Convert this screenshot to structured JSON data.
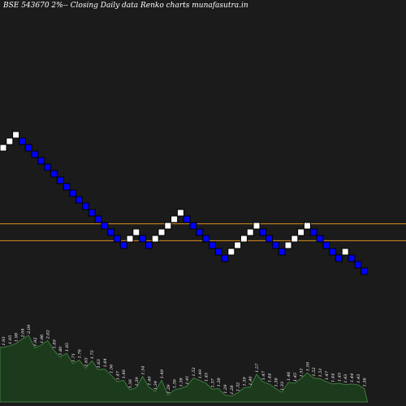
{
  "chart_data": {
    "type": "renko",
    "title": "BSE 543670  2%--  Closing Daily data  Renko  charts munafasutra.in",
    "brick_size_pct": 2,
    "colors": {
      "background": "#1b1b1b",
      "up_brick": "#ffffff",
      "down_brick": "#0000ff",
      "brick_border": "#000000",
      "reference_line": "#d98c1f",
      "volume_fill": "#1c3a1c",
      "volume_stroke": "#3e7a3e",
      "volume_label": "#ffffff"
    },
    "bricks": [
      {
        "level": 0,
        "dir": "up"
      },
      {
        "level": 1,
        "dir": "up"
      },
      {
        "level": 2,
        "dir": "up"
      },
      {
        "level": 1,
        "dir": "down"
      },
      {
        "level": 0,
        "dir": "down"
      },
      {
        "level": -1,
        "dir": "down"
      },
      {
        "level": -2,
        "dir": "down"
      },
      {
        "level": -3,
        "dir": "down"
      },
      {
        "level": -4,
        "dir": "down"
      },
      {
        "level": -5,
        "dir": "down"
      },
      {
        "level": -6,
        "dir": "down"
      },
      {
        "level": -7,
        "dir": "down"
      },
      {
        "level": -8,
        "dir": "down"
      },
      {
        "level": -9,
        "dir": "down"
      },
      {
        "level": -10,
        "dir": "down"
      },
      {
        "level": -11,
        "dir": "down"
      },
      {
        "level": -12,
        "dir": "down"
      },
      {
        "level": -13,
        "dir": "down"
      },
      {
        "level": -14,
        "dir": "down"
      },
      {
        "level": -15,
        "dir": "down"
      },
      {
        "level": -14,
        "dir": "up"
      },
      {
        "level": -13,
        "dir": "up"
      },
      {
        "level": -14,
        "dir": "down"
      },
      {
        "level": -15,
        "dir": "down"
      },
      {
        "level": -14,
        "dir": "up"
      },
      {
        "level": -13,
        "dir": "up"
      },
      {
        "level": -12,
        "dir": "up"
      },
      {
        "level": -11,
        "dir": "up"
      },
      {
        "level": -10,
        "dir": "up"
      },
      {
        "level": -11,
        "dir": "down"
      },
      {
        "level": -12,
        "dir": "down"
      },
      {
        "level": -13,
        "dir": "down"
      },
      {
        "level": -14,
        "dir": "down"
      },
      {
        "level": -15,
        "dir": "down"
      },
      {
        "level": -16,
        "dir": "down"
      },
      {
        "level": -17,
        "dir": "down"
      },
      {
        "level": -16,
        "dir": "up"
      },
      {
        "level": -15,
        "dir": "up"
      },
      {
        "level": -14,
        "dir": "up"
      },
      {
        "level": -13,
        "dir": "up"
      },
      {
        "level": -12,
        "dir": "up"
      },
      {
        "level": -13,
        "dir": "down"
      },
      {
        "level": -14,
        "dir": "down"
      },
      {
        "level": -15,
        "dir": "down"
      },
      {
        "level": -16,
        "dir": "down"
      },
      {
        "level": -15,
        "dir": "up"
      },
      {
        "level": -14,
        "dir": "up"
      },
      {
        "level": -13,
        "dir": "up"
      },
      {
        "level": -12,
        "dir": "up"
      },
      {
        "level": -13,
        "dir": "down"
      },
      {
        "level": -14,
        "dir": "down"
      },
      {
        "level": -15,
        "dir": "down"
      },
      {
        "level": -16,
        "dir": "down"
      },
      {
        "level": -17,
        "dir": "down"
      },
      {
        "level": -16,
        "dir": "up"
      },
      {
        "level": -17,
        "dir": "down"
      },
      {
        "level": -18,
        "dir": "down"
      },
      {
        "level": -19,
        "dir": "down"
      }
    ],
    "reference_lines": [
      -12.2,
      -14.8
    ],
    "volume": {
      "values": [
        1.93,
        1.95,
        1.98,
        2.04,
        2.09,
        1.92,
        1.96,
        2.02,
        1.89,
        1.8,
        1.85,
        1.71,
        1.76,
        1.65,
        1.75,
        1.63,
        1.64,
        1.56,
        1.47,
        1.49,
        1.36,
        1.39,
        1.54,
        1.4,
        1.34,
        1.49,
        1.29,
        1.36,
        1.38,
        1.41,
        1.52,
        1.49,
        1.45,
        1.37,
        1.38,
        1.29,
        1.28,
        1.32,
        1.39,
        1.4,
        1.57,
        1.47,
        1.44,
        1.38,
        1.33,
        1.46,
        1.45,
        1.51,
        1.59,
        1.52,
        1.51,
        1.47,
        1.44,
        1.45,
        1.43,
        1.44,
        1.43,
        1.38
      ],
      "labels": [
        "1.93",
        "1.95",
        "1.98",
        "2.04",
        "2.09",
        "1.92",
        "1.96",
        "2.02",
        "1.89",
        "1.80",
        "1.85",
        "1.71",
        "1.76",
        "1.65",
        "1.75",
        "1.63",
        "1.64",
        "1.56",
        "1.47",
        "1.49",
        "1.36",
        "1.39",
        "1.54",
        "1.40",
        "1.34",
        "1.49",
        "1.29",
        "1.36",
        "1.38",
        "1.41",
        "1.52",
        "1.49",
        "1.45",
        "1.37",
        "1.38",
        "1.29",
        "1.28",
        "1.32",
        "1.39",
        "1.40",
        "1.57",
        "1.47",
        "1.44",
        "1.38",
        "1.33",
        "1.46",
        "1.45",
        "1.51",
        "1.59",
        "1.52",
        "1.51",
        "1.47",
        "1.44",
        "1.45",
        "1.43",
        "1.44",
        "1.43",
        "1.38"
      ]
    }
  }
}
